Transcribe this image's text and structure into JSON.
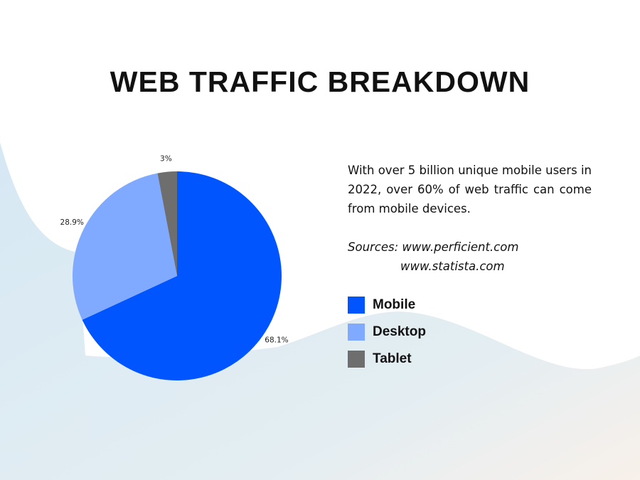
{
  "chart_data": {
    "type": "pie",
    "title": "WEB TRAFFIC BREAKDOWN",
    "categories": [
      "Mobile",
      "Desktop",
      "Tablet"
    ],
    "values": [
      68.1,
      28.9,
      3
    ],
    "labels": [
      "68.1%",
      "28.9%",
      "3%"
    ],
    "colors": [
      "#0055ff",
      "#80aaff",
      "#6e6e6e"
    ],
    "start_angle": "top",
    "direction": "clockwise",
    "legend": "right"
  },
  "description": "With over 5 billion unique mobile users in 2022, over 60% of web traffic can come from mobile devices.",
  "sources": {
    "line1": "Sources: www.perficient.com",
    "line2": "www.statista.com"
  },
  "background_color": "#dbeaf4"
}
